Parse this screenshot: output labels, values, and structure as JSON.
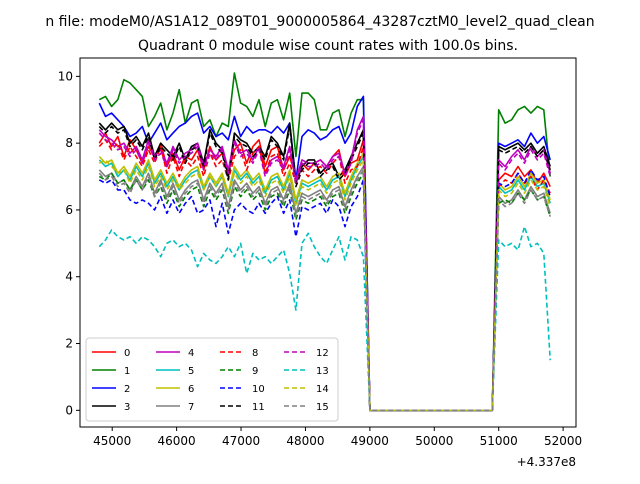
{
  "window": {
    "suptitle": "n file: modeM0/AS1A12_089T01_9000005864_43287cztM0_level2_quad_clean"
  },
  "chart_data": {
    "type": "line",
    "title": "Quadrant 0 module wise count rates with 100.0s bins.",
    "xlabel": "",
    "ylabel": "",
    "x_offset_label": "+4.337e8",
    "xlim": [
      44500,
      52200
    ],
    "ylim": [
      -0.5,
      10.55
    ],
    "x_ticks": [
      45000,
      46000,
      47000,
      48000,
      49000,
      50000,
      51000,
      52000
    ],
    "x_tick_labels": [
      "45000",
      "46000",
      "47000",
      "48000",
      "49000",
      "50000",
      "51000",
      "52000"
    ],
    "y_ticks": [
      0,
      2,
      4,
      6,
      8,
      10
    ],
    "y_tick_labels": [
      "0",
      "2",
      "4",
      "6",
      "8",
      "10"
    ],
    "grid": false,
    "legend_location": "lower-left",
    "legend_columns": 4,
    "series": [
      {
        "name": "0",
        "color": "#ff0000",
        "dash": "solid",
        "profile": [
          8.0,
          8.3,
          7.9,
          8.2,
          7.6,
          8.1,
          7.8,
          7.4,
          7.9,
          7.6,
          8.0,
          7.3,
          7.7,
          7.2,
          7.6,
          7.5,
          7.8,
          7.2,
          7.9,
          7.5,
          7.7,
          7.1,
          7.8,
          8.0,
          7.4,
          7.9,
          8.1,
          7.3,
          7.8,
          7.9,
          7.2,
          7.6,
          7.0,
          7.4,
          7.2,
          7.4,
          7.5,
          7.3,
          7.6,
          7.8,
          7.0,
          7.4,
          7.5,
          8.1
        ],
        "resume": [
          6.9,
          7.1,
          7.0,
          7.3,
          7.0,
          7.2,
          6.8,
          7.1,
          6.7
        ]
      },
      {
        "name": "1",
        "color": "#008000",
        "dash": "solid",
        "profile": [
          9.3,
          9.4,
          9.1,
          9.3,
          9.9,
          9.8,
          9.6,
          9.4,
          8.5,
          8.8,
          9.2,
          8.4,
          8.9,
          9.6,
          8.6,
          9.2,
          9.3,
          8.5,
          8.7,
          8.2,
          8.6,
          8.5,
          10.1,
          9.2,
          9.1,
          8.8,
          9.3,
          8.5,
          9.2,
          9.3,
          8.7,
          9.5,
          7.6,
          9.5,
          9.5,
          9.3,
          8.4,
          8.4,
          8.9,
          9.0,
          8.2,
          8.9,
          9.3,
          9.3
        ],
        "resume": [
          9.0,
          8.6,
          8.7,
          9.0,
          9.1,
          8.9,
          9.1,
          9.0,
          7.0
        ]
      },
      {
        "name": "2",
        "color": "#0000ff",
        "dash": "solid",
        "profile": [
          9.2,
          8.8,
          8.9,
          8.7,
          8.5,
          8.2,
          8.3,
          8.5,
          8.0,
          8.3,
          8.6,
          8.1,
          8.3,
          8.5,
          8.6,
          8.8,
          8.9,
          8.3,
          8.5,
          8.2,
          8.3,
          8.1,
          8.8,
          8.2,
          8.5,
          8.3,
          8.4,
          8.4,
          8.3,
          8.5,
          8.3,
          8.6,
          6.9,
          8.2,
          8.4,
          8.3,
          8.1,
          8.2,
          8.4,
          8.5,
          8.0,
          8.3,
          9.1,
          9.4
        ],
        "resume": [
          8.0,
          7.9,
          8.0,
          8.1,
          7.9,
          8.3,
          8.0,
          8.2,
          7.5
        ]
      },
      {
        "name": "3",
        "color": "#000000",
        "dash": "solid",
        "profile": [
          8.6,
          8.4,
          8.6,
          8.4,
          8.5,
          8.0,
          8.2,
          7.9,
          8.3,
          7.6,
          8.0,
          7.8,
          7.6,
          8.0,
          7.5,
          7.9,
          8.0,
          7.4,
          8.4,
          8.0,
          7.8,
          7.0,
          8.3,
          8.1,
          8.0,
          7.7,
          7.9,
          7.6,
          8.2,
          8.0,
          7.6,
          8.6,
          6.8,
          7.3,
          7.5,
          7.5,
          7.1,
          7.3,
          7.4,
          7.0,
          7.2,
          7.6,
          8.0,
          8.4
        ],
        "resume": [
          7.9,
          7.8,
          7.9,
          8.0,
          7.8,
          8.0,
          7.7,
          7.9,
          7.3
        ]
      },
      {
        "name": "4",
        "color": "#bf00bf",
        "dash": "solid",
        "profile": [
          8.4,
          8.2,
          8.1,
          7.9,
          8.0,
          7.7,
          7.9,
          7.5,
          8.1,
          7.6,
          7.8,
          7.4,
          7.9,
          7.5,
          7.7,
          7.8,
          8.0,
          7.3,
          7.8,
          7.6,
          7.9,
          7.2,
          8.1,
          7.7,
          7.8,
          7.5,
          7.9,
          7.1,
          7.5,
          7.6,
          7.3,
          7.9,
          6.9,
          7.5,
          7.4,
          7.4,
          7.5,
          7.3,
          7.6,
          7.7,
          7.1,
          7.5,
          8.4,
          8.8
        ],
        "resume": [
          7.5,
          7.3,
          7.6,
          7.8,
          7.5,
          7.9,
          7.6,
          7.8,
          7.1
        ]
      },
      {
        "name": "5",
        "color": "#00bfbf",
        "dash": "solid",
        "profile": [
          7.5,
          7.3,
          7.4,
          7.0,
          7.2,
          6.9,
          7.3,
          7.0,
          7.4,
          6.8,
          7.1,
          6.7,
          7.0,
          6.6,
          6.9,
          7.1,
          7.2,
          6.6,
          7.0,
          6.7,
          7.0,
          6.4,
          7.2,
          6.9,
          7.1,
          6.8,
          7.0,
          6.5,
          6.9,
          7.0,
          6.6,
          7.1,
          6.2,
          6.8,
          6.7,
          6.8,
          6.9,
          6.6,
          6.9,
          7.0,
          6.4,
          6.9,
          7.3,
          7.6
        ],
        "resume": [
          6.7,
          6.5,
          6.6,
          6.9,
          6.6,
          7.0,
          6.7,
          6.8,
          6.2
        ]
      },
      {
        "name": "6",
        "color": "#bfbf00",
        "dash": "solid",
        "profile": [
          7.6,
          7.4,
          7.5,
          7.1,
          7.3,
          7.0,
          7.4,
          7.1,
          7.5,
          6.9,
          7.2,
          6.8,
          7.1,
          6.7,
          7.0,
          7.2,
          7.3,
          6.7,
          7.1,
          6.8,
          7.1,
          6.5,
          7.3,
          7.0,
          7.2,
          6.9,
          7.1,
          6.6,
          7.0,
          7.1,
          6.7,
          7.2,
          6.3,
          6.9,
          6.8,
          6.9,
          7.0,
          6.7,
          7.0,
          7.1,
          6.5,
          7.0,
          7.4,
          7.7
        ],
        "resume": [
          6.8,
          6.6,
          6.7,
          7.0,
          6.7,
          7.1,
          6.8,
          6.9,
          6.3
        ]
      },
      {
        "name": "7",
        "color": "#808080",
        "dash": "solid",
        "profile": [
          7.2,
          7.0,
          7.1,
          6.8,
          6.9,
          6.6,
          7.0,
          6.7,
          7.1,
          6.5,
          6.9,
          6.4,
          6.8,
          6.3,
          6.6,
          6.8,
          6.9,
          6.3,
          6.8,
          6.5,
          6.8,
          6.1,
          6.9,
          6.6,
          6.8,
          6.5,
          6.7,
          6.2,
          6.6,
          6.7,
          6.3,
          6.8,
          5.9,
          6.5,
          6.4,
          6.5,
          6.6,
          6.3,
          6.6,
          6.7,
          6.1,
          6.6,
          7.0,
          7.3
        ],
        "resume": [
          6.4,
          6.2,
          6.3,
          6.6,
          6.3,
          6.7,
          6.4,
          6.5,
          5.9
        ]
      },
      {
        "name": "8",
        "color": "#ff0000",
        "dash": "dashed",
        "profile": [
          7.9,
          8.1,
          7.8,
          8.0,
          7.5,
          7.9,
          7.6,
          7.3,
          7.8,
          7.4,
          7.9,
          7.1,
          7.6,
          7.0,
          7.5,
          7.3,
          7.6,
          7.0,
          7.7,
          7.3,
          7.5,
          6.9,
          7.6,
          7.8,
          7.2,
          7.7,
          7.9,
          7.1,
          7.6,
          7.7,
          7.0,
          7.4,
          6.8,
          7.2,
          7.0,
          7.2,
          7.3,
          7.1,
          7.4,
          7.6,
          6.8,
          7.2,
          7.3,
          7.9
        ],
        "resume": [
          6.7,
          6.9,
          6.8,
          7.1,
          6.8,
          7.0,
          6.6,
          6.9,
          6.5
        ]
      },
      {
        "name": "9",
        "color": "#008000",
        "dash": "dashed",
        "profile": [
          7.0,
          6.9,
          7.1,
          6.8,
          6.9,
          6.6,
          6.9,
          6.6,
          6.9,
          6.4,
          6.7,
          6.2,
          6.6,
          6.1,
          6.4,
          6.6,
          6.7,
          6.1,
          6.6,
          6.3,
          6.6,
          5.9,
          6.7,
          6.4,
          6.6,
          6.3,
          6.5,
          6.0,
          6.4,
          6.5,
          6.1,
          6.6,
          5.7,
          6.3,
          6.2,
          6.3,
          6.4,
          6.1,
          6.4,
          6.5,
          5.9,
          6.4,
          6.8,
          7.1
        ],
        "resume": [
          6.2,
          6.3,
          6.2,
          6.5,
          6.3,
          6.6,
          6.3,
          6.4,
          5.8
        ]
      },
      {
        "name": "10",
        "color": "#0000ff",
        "dash": "dashed",
        "profile": [
          6.9,
          6.8,
          6.9,
          6.6,
          6.6,
          6.3,
          6.2,
          6.3,
          6.2,
          6.0,
          6.4,
          5.9,
          6.3,
          5.9,
          6.2,
          6.4,
          5.9,
          6.0,
          6.3,
          5.5,
          6.2,
          5.3,
          6.0,
          6.2,
          6.0,
          5.9,
          6.2,
          5.9,
          6.2,
          6.4,
          5.9,
          6.3,
          5.2,
          6.1,
          6.0,
          6.1,
          6.2,
          5.9,
          6.3,
          6.1,
          5.5,
          6.1,
          6.4,
          6.9
        ],
        "resume": [
          6.8,
          6.7,
          6.8,
          7.1,
          6.8,
          7.2,
          6.9,
          7.0,
          6.4
        ]
      },
      {
        "name": "11",
        "color": "#000000",
        "dash": "dashed",
        "profile": [
          8.5,
          8.3,
          8.5,
          8.3,
          8.4,
          7.9,
          8.1,
          7.8,
          8.2,
          7.5,
          7.9,
          7.7,
          7.5,
          7.9,
          7.4,
          7.8,
          7.9,
          7.3,
          8.3,
          7.9,
          7.7,
          6.9,
          8.2,
          8.0,
          7.9,
          7.6,
          7.8,
          7.5,
          8.1,
          7.9,
          7.5,
          8.5,
          6.7,
          7.2,
          7.4,
          7.4,
          7.0,
          7.2,
          7.3,
          6.9,
          7.1,
          7.5,
          7.9,
          8.3
        ],
        "resume": [
          7.8,
          7.7,
          7.8,
          7.9,
          7.7,
          7.9,
          7.6,
          7.8,
          7.2
        ]
      },
      {
        "name": "12",
        "color": "#bf00bf",
        "dash": "dashed",
        "profile": [
          8.3,
          8.1,
          8.0,
          7.8,
          7.9,
          7.6,
          7.8,
          7.4,
          8.0,
          7.5,
          7.7,
          7.3,
          7.8,
          7.4,
          7.6,
          7.7,
          7.9,
          7.2,
          7.7,
          7.5,
          7.8,
          7.1,
          8.0,
          7.6,
          7.7,
          7.4,
          7.8,
          7.0,
          7.4,
          7.5,
          7.2,
          7.8,
          6.8,
          7.4,
          7.3,
          7.3,
          7.4,
          7.2,
          7.5,
          7.6,
          7.0,
          7.4,
          8.3,
          8.7
        ],
        "resume": [
          7.4,
          7.2,
          7.5,
          7.7,
          7.4,
          7.8,
          7.5,
          7.7,
          7.0
        ]
      },
      {
        "name": "13",
        "color": "#00bfbf",
        "dash": "dashed",
        "profile": [
          4.9,
          5.1,
          5.4,
          5.2,
          5.1,
          5.2,
          5.0,
          5.2,
          5.1,
          4.9,
          4.6,
          5.0,
          5.1,
          4.9,
          5.0,
          4.8,
          4.3,
          4.7,
          4.5,
          4.4,
          4.6,
          4.9,
          4.6,
          5.0,
          4.1,
          4.7,
          4.5,
          4.6,
          4.4,
          4.6,
          4.8,
          4.1,
          3.0,
          5.0,
          5.3,
          4.9,
          4.6,
          4.4,
          4.8,
          5.2,
          4.5,
          5.2,
          5.1,
          4.6
        ],
        "resume": [
          5.1,
          4.9,
          5.0,
          4.8,
          5.5,
          4.9,
          5.0,
          4.7,
          1.5
        ]
      },
      {
        "name": "14",
        "color": "#bfbf00",
        "dash": "dashed",
        "profile": [
          7.4,
          7.5,
          7.3,
          7.1,
          7.2,
          6.8,
          7.2,
          6.9,
          7.3,
          6.7,
          7.0,
          6.6,
          6.9,
          6.6,
          6.8,
          7.0,
          7.1,
          6.6,
          7.0,
          6.7,
          7.0,
          6.4,
          7.1,
          6.8,
          7.0,
          6.7,
          6.9,
          6.4,
          6.8,
          6.9,
          6.5,
          7.0,
          6.1,
          6.7,
          6.6,
          6.7,
          6.8,
          6.5,
          6.8,
          6.9,
          6.3,
          6.8,
          7.2,
          7.5
        ],
        "resume": [
          6.6,
          6.4,
          6.5,
          6.8,
          6.5,
          6.9,
          6.6,
          6.7,
          6.1
        ]
      },
      {
        "name": "15",
        "color": "#808080",
        "dash": "dashed",
        "profile": [
          7.1,
          6.9,
          7.0,
          6.7,
          6.8,
          6.5,
          6.9,
          6.6,
          7.0,
          6.4,
          6.8,
          6.3,
          6.7,
          6.2,
          6.5,
          6.7,
          6.8,
          6.2,
          6.7,
          6.4,
          6.7,
          6.0,
          6.8,
          6.5,
          6.7,
          6.4,
          6.6,
          6.1,
          6.5,
          6.6,
          6.2,
          6.7,
          5.8,
          6.4,
          6.3,
          6.4,
          6.5,
          6.2,
          6.5,
          6.6,
          6.0,
          6.5,
          6.9,
          7.2
        ],
        "resume": [
          6.3,
          6.1,
          6.2,
          6.5,
          6.2,
          6.6,
          6.3,
          6.4,
          5.8
        ]
      }
    ],
    "x_active_1": [
      44800,
      48900
    ],
    "x_gap": [
      49000,
      50900
    ],
    "x_active_2": [
      51000,
      51800
    ]
  }
}
